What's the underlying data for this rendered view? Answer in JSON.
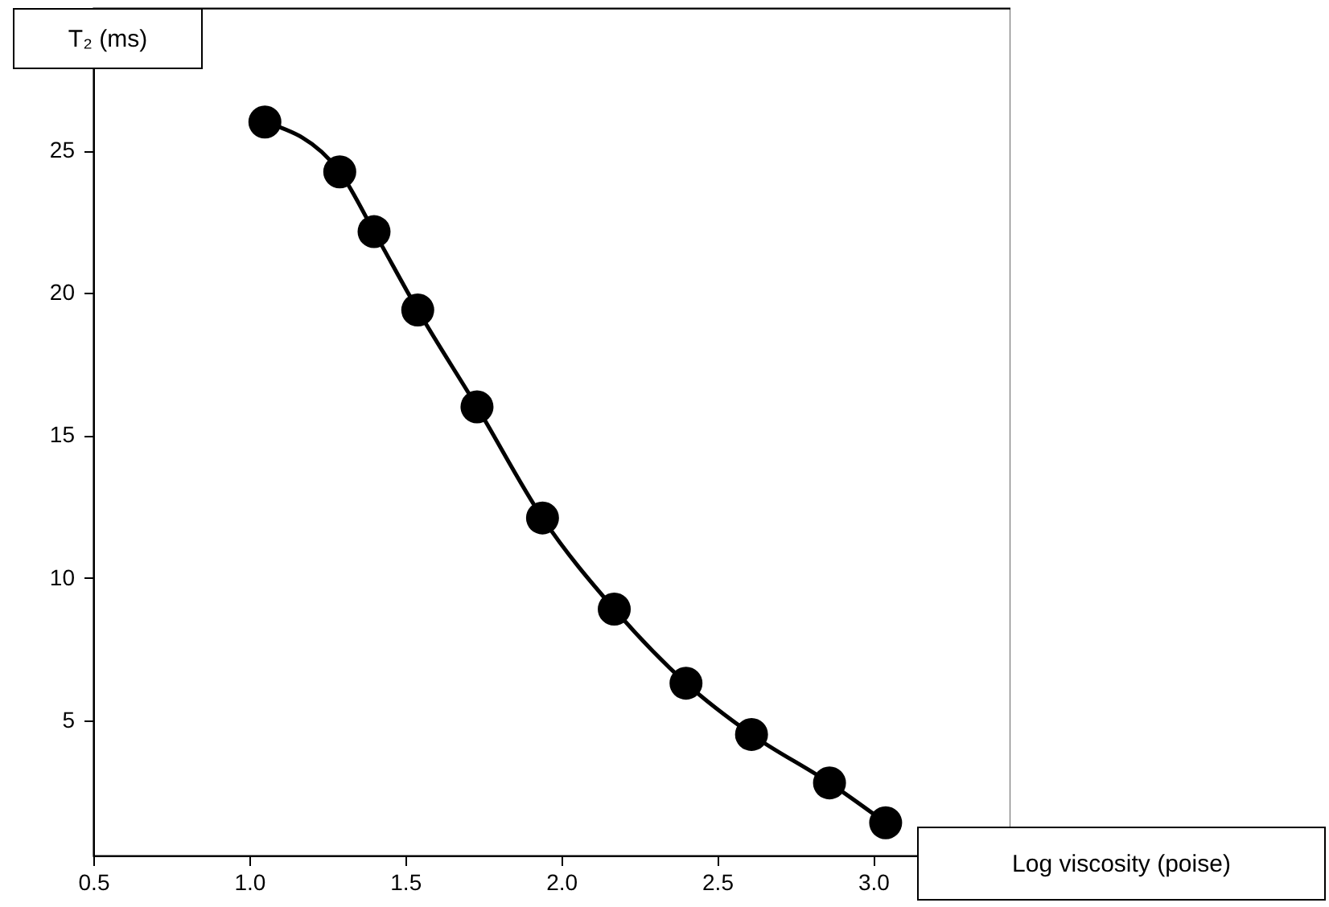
{
  "chart_data": {
    "type": "line",
    "xlabel": "Log viscosity (poise)",
    "ylabel": "T₂ (ms)",
    "x": [
      1.05,
      1.29,
      1.4,
      1.54,
      1.73,
      1.94,
      2.17,
      2.4,
      2.61,
      2.86,
      3.04
    ],
    "series": [
      {
        "color": "#000000",
        "values": [
          26.0,
          24.25,
          22.15,
          19.4,
          16.0,
          12.1,
          8.9,
          6.3,
          4.5,
          2.8,
          1.4
        ]
      }
    ],
    "xlim": [
      0.5,
      3.44
    ],
    "xticks": [
      0.5,
      {
        "value": 1,
        "label": "1.0"
      },
      1.5,
      {
        "value": 2,
        "label": "2.0"
      },
      2.5,
      {
        "value": 3,
        "label": "3.0"
      }
    ],
    "ylim": [
      0.25,
      30
    ],
    "yticks": [
      5,
      10,
      15,
      20,
      25
    ],
    "grid": false,
    "marker": "circle",
    "line_style": "solid"
  }
}
